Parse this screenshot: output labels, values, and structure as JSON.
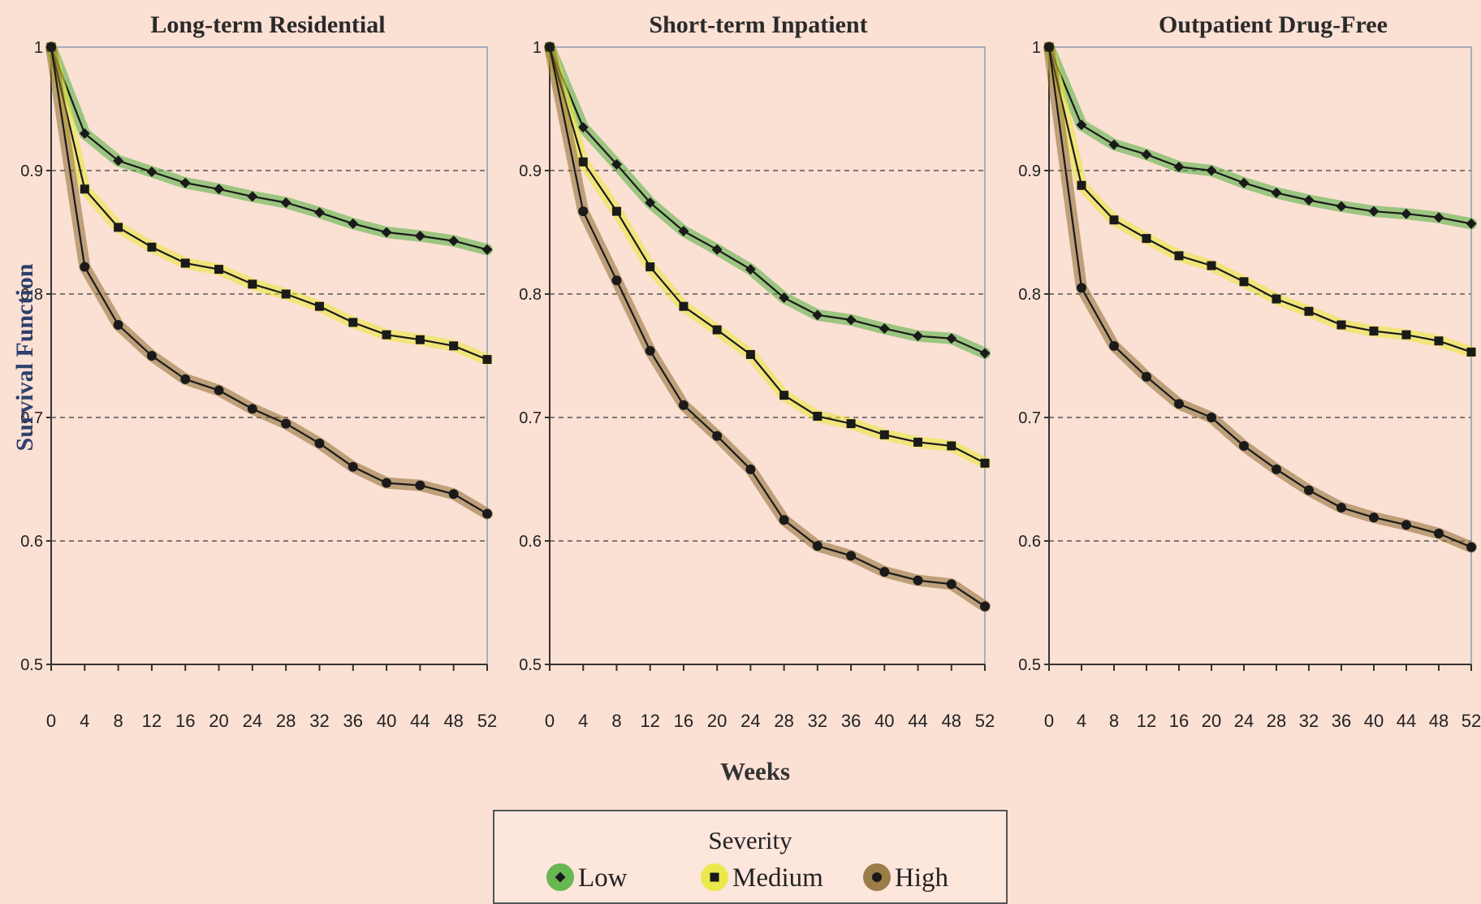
{
  "chart_data": {
    "type": "line",
    "ylabel": "Survival Function",
    "xlabel": "Weeks",
    "ylim": [
      0.5,
      1
    ],
    "yticks": [
      "0.5",
      "0.6",
      "0.7",
      "0.8",
      "0.9",
      "1"
    ],
    "xlim": [
      0,
      52
    ],
    "xticks": [
      "0",
      "4",
      "8",
      "12",
      "16",
      "20",
      "24",
      "28",
      "32",
      "36",
      "40",
      "44",
      "48",
      "52"
    ],
    "grid": "horizontal dashed",
    "legend": {
      "title": "Severity",
      "placement": "bottom-center",
      "entries": [
        {
          "label": "Low",
          "color": "#4caf3a",
          "marker": "diamond"
        },
        {
          "label": "Medium",
          "color": "#e8e832",
          "marker": "square"
        },
        {
          "label": "High",
          "color": "#8b6a2e",
          "marker": "circle"
        }
      ]
    },
    "panels": [
      {
        "title": "Long-term Residential",
        "x": [
          0,
          4,
          8,
          12,
          16,
          20,
          24,
          28,
          32,
          36,
          40,
          44,
          48,
          52
        ],
        "series": [
          {
            "name": "Low",
            "values": [
              1,
              0.93,
              0.908,
              0.899,
              0.89,
              0.885,
              0.879,
              0.874,
              0.866,
              0.857,
              0.85,
              0.847,
              0.843,
              0.836
            ]
          },
          {
            "name": "Medium",
            "values": [
              1,
              0.885,
              0.854,
              0.838,
              0.825,
              0.82,
              0.808,
              0.8,
              0.79,
              0.777,
              0.767,
              0.763,
              0.758,
              0.747
            ]
          },
          {
            "name": "High",
            "values": [
              1,
              0.822,
              0.775,
              0.75,
              0.731,
              0.722,
              0.707,
              0.695,
              0.679,
              0.66,
              0.647,
              0.645,
              0.638,
              0.622
            ]
          }
        ]
      },
      {
        "title": "Short-term Inpatient",
        "x": [
          0,
          4,
          8,
          12,
          16,
          20,
          24,
          28,
          32,
          36,
          40,
          44,
          48,
          52
        ],
        "series": [
          {
            "name": "Low",
            "values": [
              1,
              0.935,
              0.905,
              0.874,
              0.851,
              0.836,
              0.82,
              0.797,
              0.783,
              0.779,
              0.772,
              0.766,
              0.764,
              0.752
            ]
          },
          {
            "name": "Medium",
            "values": [
              1,
              0.907,
              0.867,
              0.822,
              0.79,
              0.771,
              0.751,
              0.718,
              0.701,
              0.695,
              0.686,
              0.68,
              0.677,
              0.663
            ]
          },
          {
            "name": "High",
            "values": [
              1,
              0.867,
              0.811,
              0.754,
              0.71,
              0.685,
              0.658,
              0.617,
              0.596,
              0.588,
              0.575,
              0.568,
              0.565,
              0.547
            ]
          }
        ]
      },
      {
        "title": "Outpatient Drug-Free",
        "x": [
          0,
          4,
          8,
          12,
          16,
          20,
          24,
          28,
          32,
          36,
          40,
          44,
          48,
          52
        ],
        "series": [
          {
            "name": "Low",
            "values": [
              1,
              0.937,
              0.921,
              0.913,
              0.903,
              0.9,
              0.89,
              0.882,
              0.876,
              0.871,
              0.867,
              0.865,
              0.862,
              0.857
            ]
          },
          {
            "name": "Medium",
            "values": [
              1,
              0.888,
              0.86,
              0.845,
              0.831,
              0.823,
              0.81,
              0.796,
              0.786,
              0.775,
              0.77,
              0.767,
              0.762,
              0.753
            ]
          },
          {
            "name": "High",
            "values": [
              1,
              0.805,
              0.758,
              0.733,
              0.711,
              0.7,
              0.677,
              0.658,
              0.641,
              0.627,
              0.619,
              0.613,
              0.606,
              0.595
            ]
          }
        ]
      }
    ]
  }
}
